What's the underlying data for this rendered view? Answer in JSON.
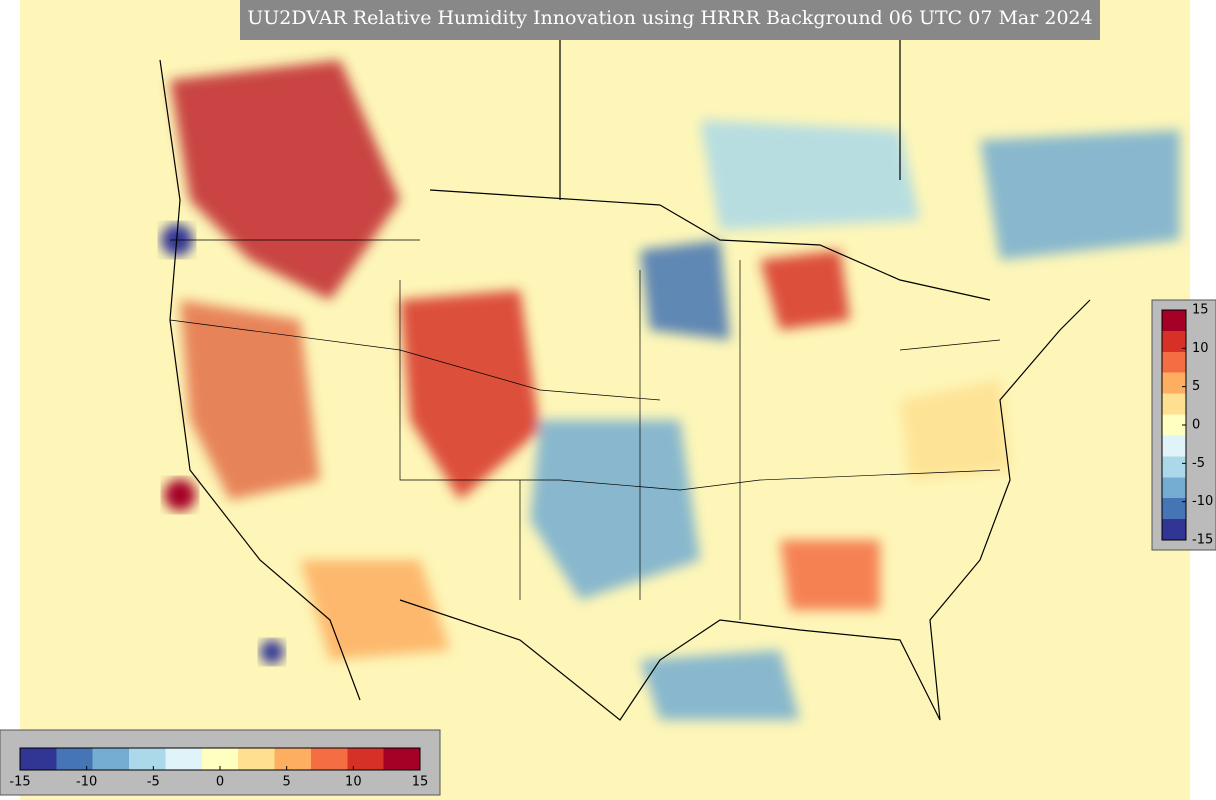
{
  "title": "UU2DVAR Relative Humidity Innovation using HRRR Background 06 UTC 07 Mar 2024",
  "colorbar": {
    "range": [
      -15,
      15
    ],
    "ticks": [
      -15,
      -10,
      -5,
      0,
      5,
      10,
      15
    ],
    "colors": [
      "#313695",
      "#4575b4",
      "#74add1",
      "#abd9e9",
      "#e0f3f8",
      "#ffffbf",
      "#fee090",
      "#fdae61",
      "#f46d43",
      "#d73027",
      "#a50026"
    ]
  }
}
